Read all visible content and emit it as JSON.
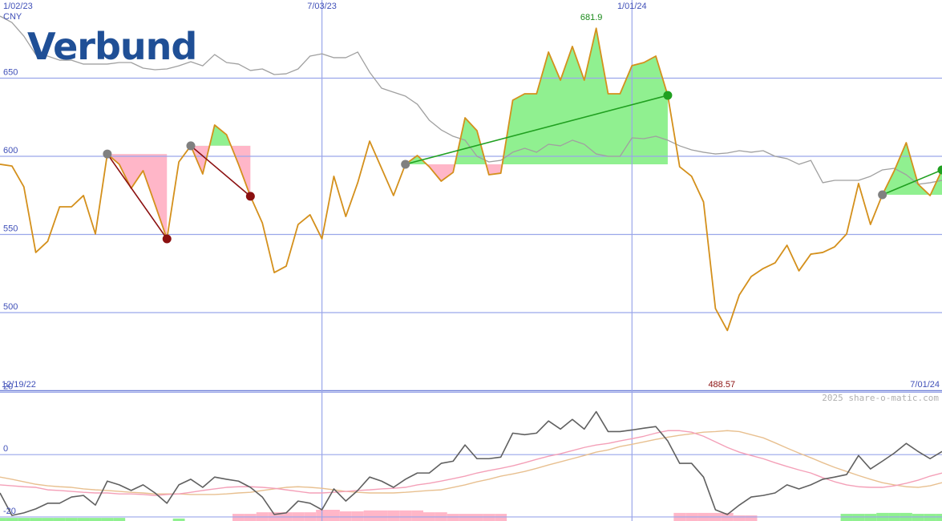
{
  "chart_data": {
    "type": "line",
    "title": "Verbund",
    "currency": "CNY",
    "credit": "2025 share-o-matic.com",
    "categories": [
      "1/02/23",
      null,
      null,
      null,
      null,
      null,
      null,
      null,
      null,
      null,
      null,
      null,
      null,
      null,
      null,
      null,
      null,
      null,
      null,
      null,
      null,
      null,
      null,
      null,
      null,
      null,
      null,
      "7/03/23",
      null,
      null,
      null,
      null,
      null,
      null,
      null,
      null,
      null,
      null,
      null,
      null,
      null,
      null,
      null,
      null,
      null,
      null,
      null,
      null,
      null,
      null,
      null,
      null,
      null,
      "1/01/24",
      null,
      null,
      null,
      null,
      null,
      null,
      null,
      null,
      null,
      null,
      null,
      null,
      null,
      null,
      null,
      null,
      null,
      null,
      null,
      null,
      null,
      null,
      null,
      null,
      null,
      null
    ],
    "ylim": [
      450,
      700
    ],
    "yticks": [
      500,
      550,
      600,
      650
    ],
    "grid": true,
    "series": [
      {
        "color": "#d4901c",
        "values": [
          594.9,
          593.8,
          580.5,
          538.5,
          545.6,
          567.7,
          567.7,
          574.9,
          550.3,
          601.5,
          594.9,
          579.5,
          590.8,
          569.2,
          547.2,
          596.4,
          606.7,
          588.7,
          620,
          613.8,
          594.9,
          574.4,
          557.4,
          525.6,
          529.7,
          556.4,
          562.6,
          547.2,
          587.2,
          561.5,
          583.1,
          609.7,
          592.3,
          574.9,
          594.9,
          600.5,
          593.3,
          584.1,
          589.7,
          624.6,
          616.4,
          588.2,
          589.2,
          635.9,
          640,
          640,
          666.7,
          648.7,
          670.3,
          648.7,
          681.9,
          640,
          640,
          658,
          660,
          664.1,
          639,
          593.3,
          587.2,
          570.8,
          502.6,
          488.57,
          511.3,
          523.1,
          528.2,
          531.8,
          543.1,
          526.7,
          537.4,
          538.5,
          542.1,
          550.3,
          582.6,
          556.4,
          575.4,
          590.8,
          608.7,
          582.1,
          574.9,
          591.3
        ]
      },
      {
        "color": "#a0a0a0",
        "values": [
          689.7,
          685.6,
          676.9,
          665.1,
          664.1,
          661.5,
          661.5,
          659,
          659,
          659,
          660,
          660,
          656.4,
          655.4,
          655.9,
          657.9,
          660.5,
          657.9,
          665.1,
          660,
          659,
          654.9,
          655.9,
          652.3,
          652.8,
          655.9,
          664.1,
          665.6,
          663.1,
          663.1,
          666.7,
          653.8,
          643.6,
          641,
          638.5,
          633.3,
          623.1,
          616.9,
          612.8,
          610.3,
          600,
          596.4,
          597.4,
          602.6,
          605.1,
          602.6,
          607.7,
          606.7,
          610.3,
          607.7,
          601.5,
          600,
          600,
          611.8,
          611.3,
          612.8,
          610.3,
          606.7,
          604.1,
          602.6,
          601.5,
          602.1,
          603.6,
          602.6,
          603.6,
          600,
          598.5,
          594.9,
          597.4,
          583.1,
          584.6,
          584.6,
          584.6,
          587.2,
          591.3,
          592.3,
          588.2,
          582.1,
          583.1,
          584.6
        ]
      }
    ],
    "signals": [
      {
        "from": 9,
        "to": 14,
        "color": "#8b1010"
      },
      {
        "from": 16,
        "to": 21,
        "color": "#8b1010"
      },
      {
        "from": 34,
        "to": 56,
        "color": "#20a020"
      },
      {
        "from": 74,
        "to": 79,
        "color": "#20a020"
      }
    ],
    "fill_up": "#90f090",
    "fill_down": "#ffb6c8",
    "lower": {
      "type": "line",
      "start_label": "12/19/22",
      "end_label": "7/01/24",
      "ylim": [
        -21.3,
        20.5
      ],
      "yticks": [
        -20,
        0,
        20
      ],
      "series": [
        {
          "color": "#606060",
          "values": [
            -12.3,
            -19.5,
            -18.7,
            -17.4,
            -15.6,
            -15.6,
            -13.6,
            -13.1,
            -16.2,
            -8.5,
            -9.7,
            -11.5,
            -9.7,
            -12.3,
            -15.6,
            -9.7,
            -7.9,
            -10.5,
            -7.2,
            -7.9,
            -8.5,
            -10.5,
            -13.6,
            -19.2,
            -18.7,
            -14.9,
            -15.6,
            -17.7,
            -11,
            -14.9,
            -11.5,
            -7.2,
            -8.5,
            -10.5,
            -7.9,
            -5.9,
            -5.9,
            -2.8,
            -2.1,
            3.1,
            -1.3,
            -1.3,
            -0.8,
            6.9,
            6.4,
            6.9,
            10.8,
            8.2,
            11.3,
            8.2,
            13.8,
            7.4,
            7.4,
            7.9,
            8.5,
            9,
            4.4,
            -2.8,
            -2.8,
            -7.2,
            -17.7,
            -19.2,
            -16.2,
            -13.6,
            -13.1,
            -12.3,
            -9.7,
            -11,
            -9.7,
            -7.9,
            -7.2,
            -6.4,
            -0.3,
            -4.6,
            -2.1,
            0.5,
            3.6,
            1,
            -1.3,
            1
          ]
        },
        {
          "color": "#f4a0b8",
          "values": [
            -9.7,
            -10,
            -10.3,
            -10.5,
            -11.3,
            -11.5,
            -11.8,
            -12.1,
            -12.3,
            -12.3,
            -12.6,
            -12.6,
            -12.8,
            -13.1,
            -12.8,
            -12.6,
            -12.1,
            -11.5,
            -11,
            -10.5,
            -10.3,
            -10.3,
            -10.5,
            -10.8,
            -11.3,
            -11.8,
            -12.3,
            -12.3,
            -12.1,
            -11.8,
            -11.5,
            -11.3,
            -11,
            -10.8,
            -10.5,
            -9.7,
            -9.2,
            -8.5,
            -7.7,
            -6.9,
            -5.9,
            -5.1,
            -4.4,
            -3.6,
            -2.6,
            -1.5,
            -0.5,
            0.3,
            1.3,
            2.3,
            3.1,
            3.6,
            4.4,
            5.1,
            5.9,
            6.9,
            7.7,
            7.7,
            7.2,
            5.9,
            4.1,
            2.3,
            0.8,
            -0.3,
            -1.3,
            -2.6,
            -3.8,
            -4.9,
            -5.9,
            -7.4,
            -8.7,
            -9.7,
            -10.3,
            -10.5,
            -10.5,
            -10,
            -9.2,
            -8.2,
            -6.9,
            -5.9
          ]
        },
        {
          "color": "#e8c090",
          "values": [
            -7.2,
            -7.9,
            -8.7,
            -9.5,
            -10,
            -10.3,
            -10.5,
            -11,
            -11.3,
            -11.5,
            -11.8,
            -12.1,
            -12.3,
            -12.6,
            -12.6,
            -12.6,
            -12.8,
            -12.8,
            -12.8,
            -12.6,
            -12.3,
            -12.1,
            -11.5,
            -11,
            -10.5,
            -10.3,
            -10.5,
            -10.8,
            -11.3,
            -11.8,
            -12.1,
            -12.3,
            -12.3,
            -12.3,
            -12.1,
            -11.8,
            -11.5,
            -11.3,
            -10.5,
            -9.7,
            -8.7,
            -7.9,
            -6.9,
            -6.2,
            -5.4,
            -4.4,
            -3.3,
            -2.3,
            -1.3,
            -0.3,
            0.8,
            1.5,
            2.6,
            3.3,
            4.1,
            4.9,
            5.6,
            6.2,
            6.7,
            7.2,
            7.4,
            7.7,
            7.4,
            6.4,
            5.4,
            3.8,
            2.1,
            0.5,
            -1,
            -2.6,
            -4.1,
            -5.4,
            -6.7,
            -7.9,
            -9,
            -9.7,
            -10.3,
            -10.5,
            -10,
            -9
          ]
        }
      ],
      "bars": [
        {
          "color": "#90f090",
          "values": [
            -20.3,
            -20.3,
            -20.3,
            -20.3,
            -20.3,
            -20.3,
            -20.3,
            -20.3,
            -20.3,
            -20.3,
            -20.3,
            null,
            null,
            null,
            null,
            -20.5,
            null,
            null,
            null,
            null,
            null,
            null,
            null,
            null,
            null,
            null,
            null,
            null,
            null,
            null,
            null,
            null,
            null,
            null,
            null,
            null,
            null,
            null,
            null,
            null,
            null,
            null,
            null,
            null,
            null,
            null,
            null,
            null,
            null,
            null,
            null,
            null,
            null,
            null,
            null,
            null,
            null,
            null,
            null,
            null,
            null,
            null,
            null,
            null,
            null,
            null,
            null,
            null,
            null,
            null,
            null,
            -19,
            -19,
            -19,
            -18.7,
            -18.7,
            -18.7,
            -19,
            -19,
            -19
          ]
        },
        {
          "color": "#ffb6c8",
          "values": [
            null,
            null,
            null,
            null,
            null,
            null,
            null,
            null,
            null,
            null,
            null,
            null,
            null,
            null,
            null,
            null,
            null,
            null,
            null,
            null,
            -19,
            -19,
            -18.5,
            -18.5,
            -18.5,
            -18.5,
            -18.5,
            -17.7,
            -17.7,
            -18.2,
            -18.2,
            -17.9,
            -17.9,
            -17.9,
            -17.9,
            -17.9,
            -18.5,
            -18.5,
            -19,
            -19,
            -19,
            -19,
            -19,
            null,
            null,
            null,
            null,
            null,
            null,
            null,
            null,
            null,
            null,
            null,
            null,
            null,
            null,
            -18.7,
            -18.7,
            -18.7,
            -18.7,
            -18.7,
            -19.5,
            -19.5,
            null,
            null,
            null,
            null,
            null,
            null,
            null,
            null,
            null,
            null,
            null,
            null,
            null,
            null,
            null,
            null
          ]
        }
      ]
    }
  }
}
